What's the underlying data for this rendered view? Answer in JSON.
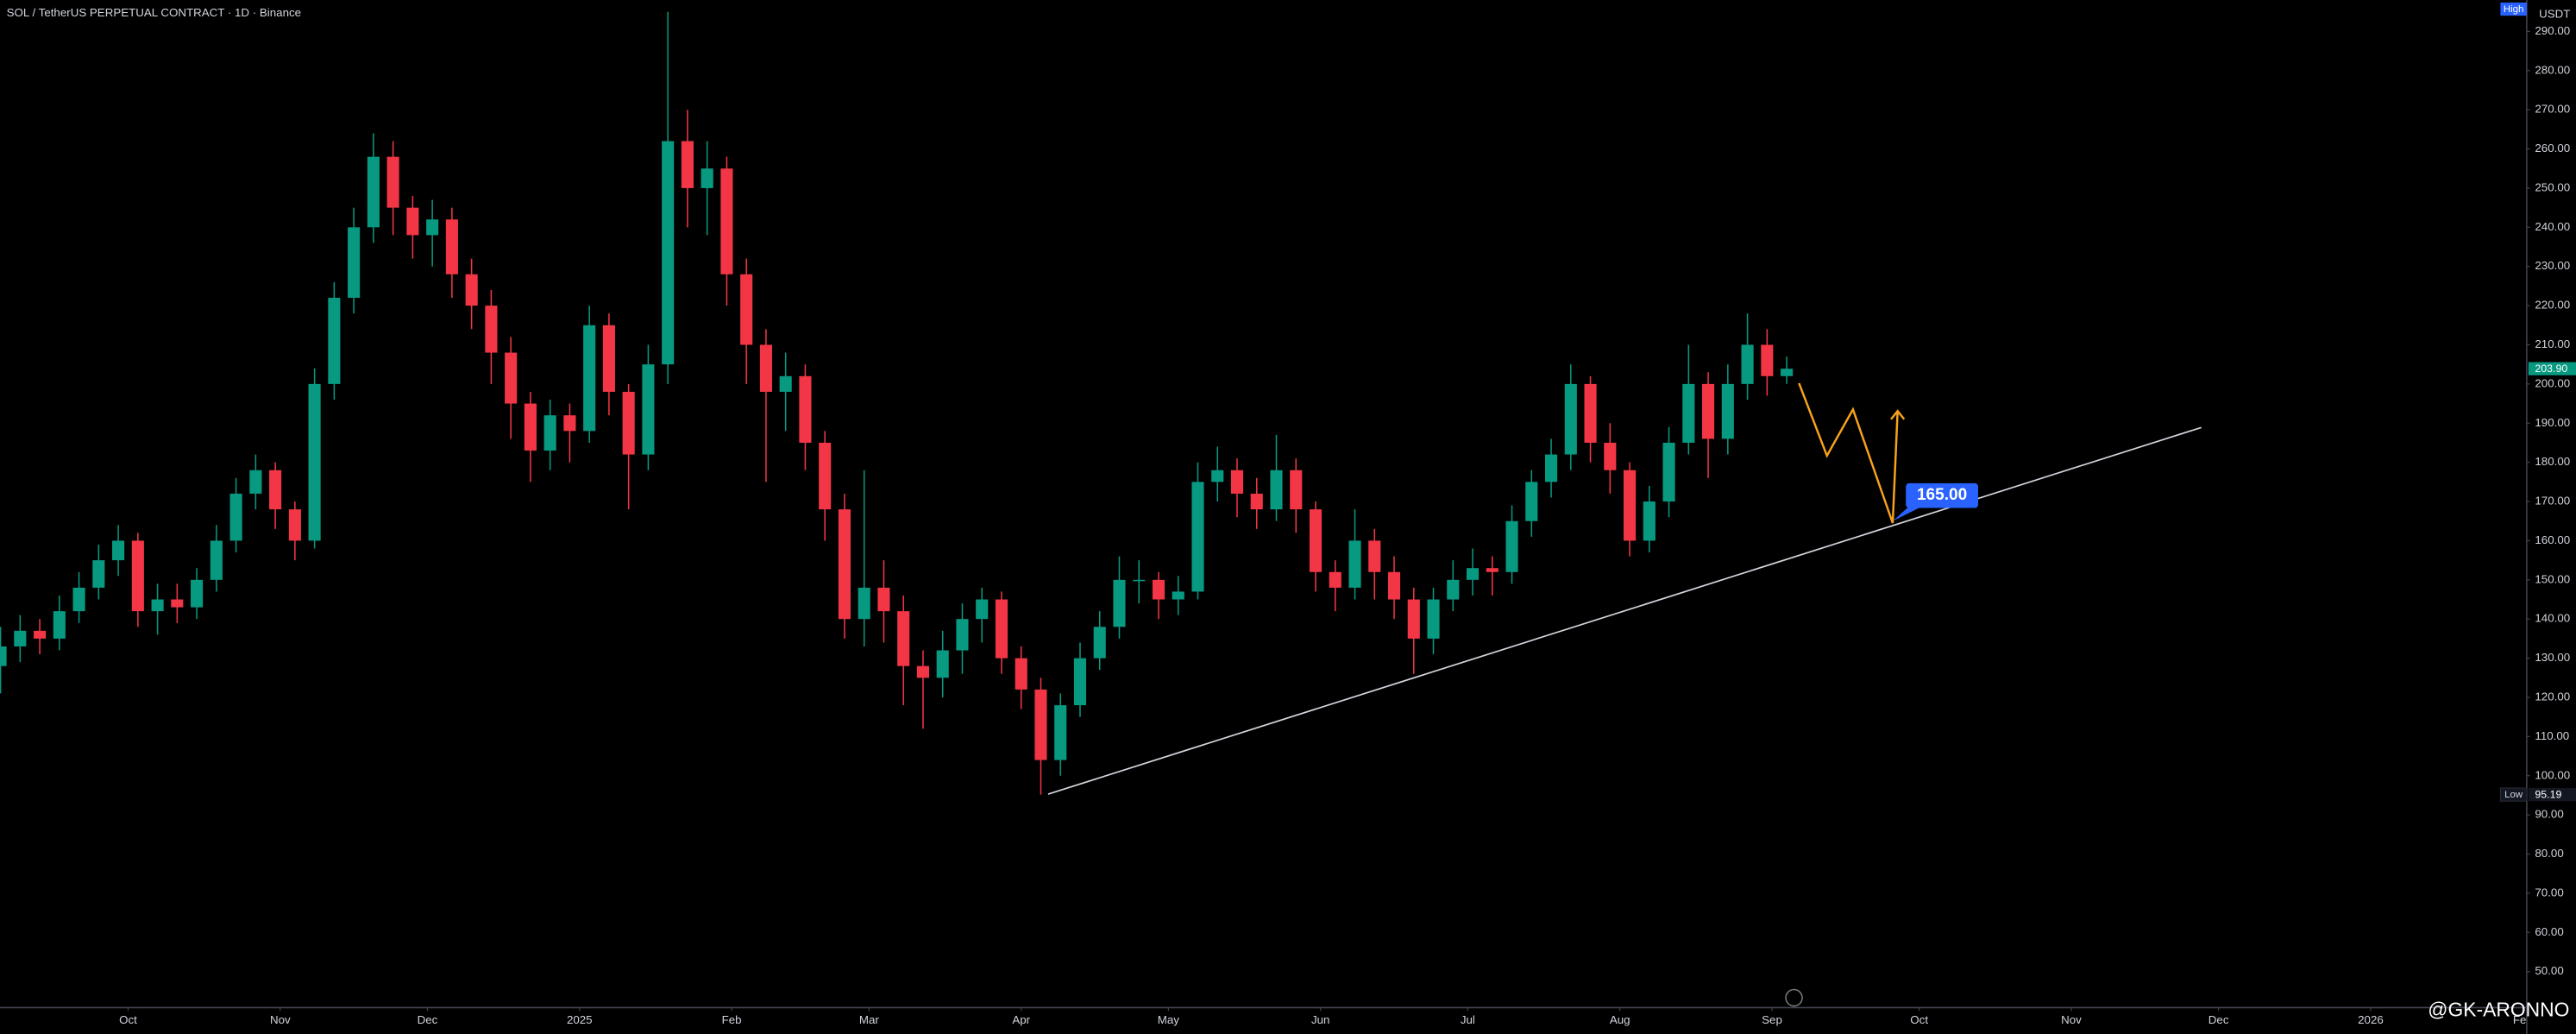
{
  "chart_data": {
    "type": "candlestick",
    "title": "SOL / TetherUS PERPETUAL CONTRACT · 1D · Binance",
    "y_unit": "USDT",
    "high_tag": "High",
    "low_tag": "Low",
    "watermark": "@GK-ARONNO",
    "up_color": "#089981",
    "down_color": "#f23645",
    "grid": false,
    "x": [
      0,
      4,
      8,
      12,
      16,
      20,
      24,
      28,
      32,
      36,
      40,
      44,
      48,
      52,
      56,
      60,
      64,
      68,
      72,
      76,
      80,
      84,
      88,
      92,
      96,
      100,
      104,
      108,
      112,
      116,
      120,
      124,
      128,
      132,
      136,
      140,
      144,
      148,
      152,
      156,
      160,
      164,
      168,
      172,
      176,
      180,
      184,
      188,
      192,
      196,
      200,
      204,
      208,
      212,
      216,
      220,
      224,
      228,
      232,
      236,
      240,
      244,
      248,
      252,
      256,
      260,
      264,
      268,
      272,
      276,
      280,
      284,
      288,
      292,
      296,
      300,
      304,
      308,
      312,
      316,
      320,
      324,
      328,
      332,
      336,
      340,
      344,
      348,
      352,
      356,
      360,
      364
    ],
    "open": [
      128,
      133,
      137,
      135,
      142,
      148,
      155,
      160,
      142,
      145,
      143,
      150,
      160,
      172,
      178,
      168,
      160,
      200,
      222,
      240,
      258,
      245,
      238,
      242,
      228,
      220,
      208,
      195,
      183,
      192,
      188,
      215,
      198,
      182,
      205,
      262,
      250,
      255,
      228,
      210,
      198,
      202,
      185,
      168,
      140,
      148,
      142,
      128,
      125,
      132,
      140,
      145,
      130,
      122,
      104,
      118,
      130,
      138,
      150,
      150,
      145,
      147,
      175,
      178,
      172,
      168,
      178,
      168,
      152,
      148,
      160,
      152,
      145,
      135,
      145,
      150,
      153,
      152,
      165,
      175,
      182,
      200,
      185,
      178,
      160,
      170,
      185,
      200,
      186,
      200,
      210,
      202
    ],
    "high": [
      138,
      141,
      140,
      146,
      152,
      159,
      164,
      162,
      149,
      149,
      153,
      164,
      176,
      182,
      180,
      170,
      204,
      226,
      245,
      264,
      262,
      248,
      247,
      245,
      232,
      224,
      212,
      198,
      196,
      195,
      220,
      218,
      200,
      210,
      295,
      270,
      262,
      258,
      232,
      214,
      208,
      205,
      188,
      172,
      178,
      155,
      146,
      132,
      137,
      144,
      148,
      147,
      133,
      125,
      121,
      134,
      142,
      156,
      155,
      152,
      151,
      180,
      184,
      181,
      176,
      187,
      181,
      170,
      155,
      168,
      163,
      156,
      148,
      148,
      155,
      158,
      156,
      169,
      178,
      186,
      205,
      202,
      190,
      180,
      174,
      189,
      210,
      203,
      205,
      218,
      214,
      207
    ],
    "low": [
      121,
      129,
      131,
      132,
      139,
      145,
      151,
      138,
      136,
      139,
      140,
      147,
      157,
      168,
      163,
      155,
      158,
      196,
      218,
      236,
      238,
      232,
      230,
      222,
      214,
      200,
      186,
      175,
      178,
      180,
      185,
      192,
      168,
      178,
      200,
      240,
      238,
      220,
      200,
      175,
      188,
      178,
      160,
      135,
      133,
      134,
      118,
      112,
      120,
      126,
      134,
      126,
      117,
      95.19,
      100,
      115,
      127,
      135,
      144,
      140,
      141,
      145,
      170,
      166,
      163,
      165,
      162,
      147,
      142,
      145,
      145,
      140,
      126,
      131,
      142,
      146,
      146,
      149,
      161,
      171,
      178,
      180,
      172,
      156,
      157,
      166,
      182,
      176,
      182,
      196,
      197,
      200
    ],
    "close": [
      133,
      137,
      135,
      142,
      148,
      155,
      160,
      142,
      145,
      143,
      150,
      160,
      172,
      178,
      168,
      160,
      200,
      222,
      240,
      258,
      245,
      238,
      242,
      228,
      220,
      208,
      195,
      183,
      192,
      188,
      215,
      198,
      182,
      205,
      262,
      250,
      255,
      228,
      210,
      198,
      202,
      185,
      168,
      140,
      148,
      142,
      128,
      125,
      132,
      140,
      145,
      130,
      122,
      104,
      118,
      130,
      138,
      150,
      150,
      145,
      147,
      175,
      178,
      172,
      168,
      178,
      168,
      152,
      148,
      160,
      152,
      145,
      135,
      145,
      150,
      153,
      152,
      165,
      175,
      182,
      200,
      185,
      178,
      160,
      170,
      185,
      200,
      186,
      200,
      210,
      202,
      203.9
    ],
    "last_price": {
      "value": 203.9,
      "label": "203.90"
    },
    "xlim": [
      -0.1,
      514.8
    ],
    "xticks": [
      {
        "value": 26,
        "label": "Oct"
      },
      {
        "value": 57,
        "label": "Nov"
      },
      {
        "value": 87,
        "label": "Dec"
      },
      {
        "value": 118,
        "label": "2025"
      },
      {
        "value": 149,
        "label": "Feb"
      },
      {
        "value": 177,
        "label": "Mar"
      },
      {
        "value": 208,
        "label": "Apr"
      },
      {
        "value": 238,
        "label": "May"
      },
      {
        "value": 269,
        "label": "Jun"
      },
      {
        "value": 299,
        "label": "Jul"
      },
      {
        "value": 330,
        "label": "Aug"
      },
      {
        "value": 361,
        "label": "Sep"
      },
      {
        "value": 391,
        "label": "Oct"
      },
      {
        "value": 422,
        "label": "Nov"
      },
      {
        "value": 452,
        "label": "Dec"
      },
      {
        "value": 483,
        "label": "2026"
      },
      {
        "value": 514,
        "label": "Feb"
      }
    ],
    "ylim": [
      40.8,
      298
    ],
    "yticks": [
      {
        "value": 50,
        "label": "50.00"
      },
      {
        "value": 60,
        "label": "60.00"
      },
      {
        "value": 70,
        "label": "70.00"
      },
      {
        "value": 80,
        "label": "80.00"
      },
      {
        "value": 90,
        "label": "90.00"
      },
      {
        "value": 100,
        "label": "100.00"
      },
      {
        "value": 110,
        "label": "110.00"
      },
      {
        "value": 120,
        "label": "120.00"
      },
      {
        "value": 130,
        "label": "130.00"
      },
      {
        "value": 140,
        "label": "140.00"
      },
      {
        "value": 150,
        "label": "150.00"
      },
      {
        "value": 160,
        "label": "160.00"
      },
      {
        "value": 170,
        "label": "170.00"
      },
      {
        "value": 180,
        "label": "180.00"
      },
      {
        "value": 190,
        "label": "190.00"
      },
      {
        "value": 200,
        "label": "200.00"
      },
      {
        "value": 210,
        "label": "210.00"
      },
      {
        "value": 220,
        "label": "220.00"
      },
      {
        "value": 230,
        "label": "230.00"
      },
      {
        "value": 240,
        "label": "240.00"
      },
      {
        "value": 250,
        "label": "250.00"
      },
      {
        "value": 260,
        "label": "260.00"
      },
      {
        "value": 270,
        "label": "270.00"
      },
      {
        "value": 280,
        "label": "280.00"
      },
      {
        "value": 290,
        "label": "290.00"
      }
    ],
    "trendline": {
      "color": "#d1d4dc",
      "x": [
        213.5,
        448.5
      ],
      "y": [
        95.3,
        188.9
      ]
    },
    "projection": {
      "color": "#f7a21b",
      "x": [
        366.5,
        372.2,
        377.5,
        385.6,
        386.6
      ],
      "y": [
        200.2,
        181.7,
        193.5,
        164.5,
        193.1
      ]
    },
    "target": {
      "value": 165,
      "label": "165.00",
      "color": "#2962ff"
    }
  }
}
